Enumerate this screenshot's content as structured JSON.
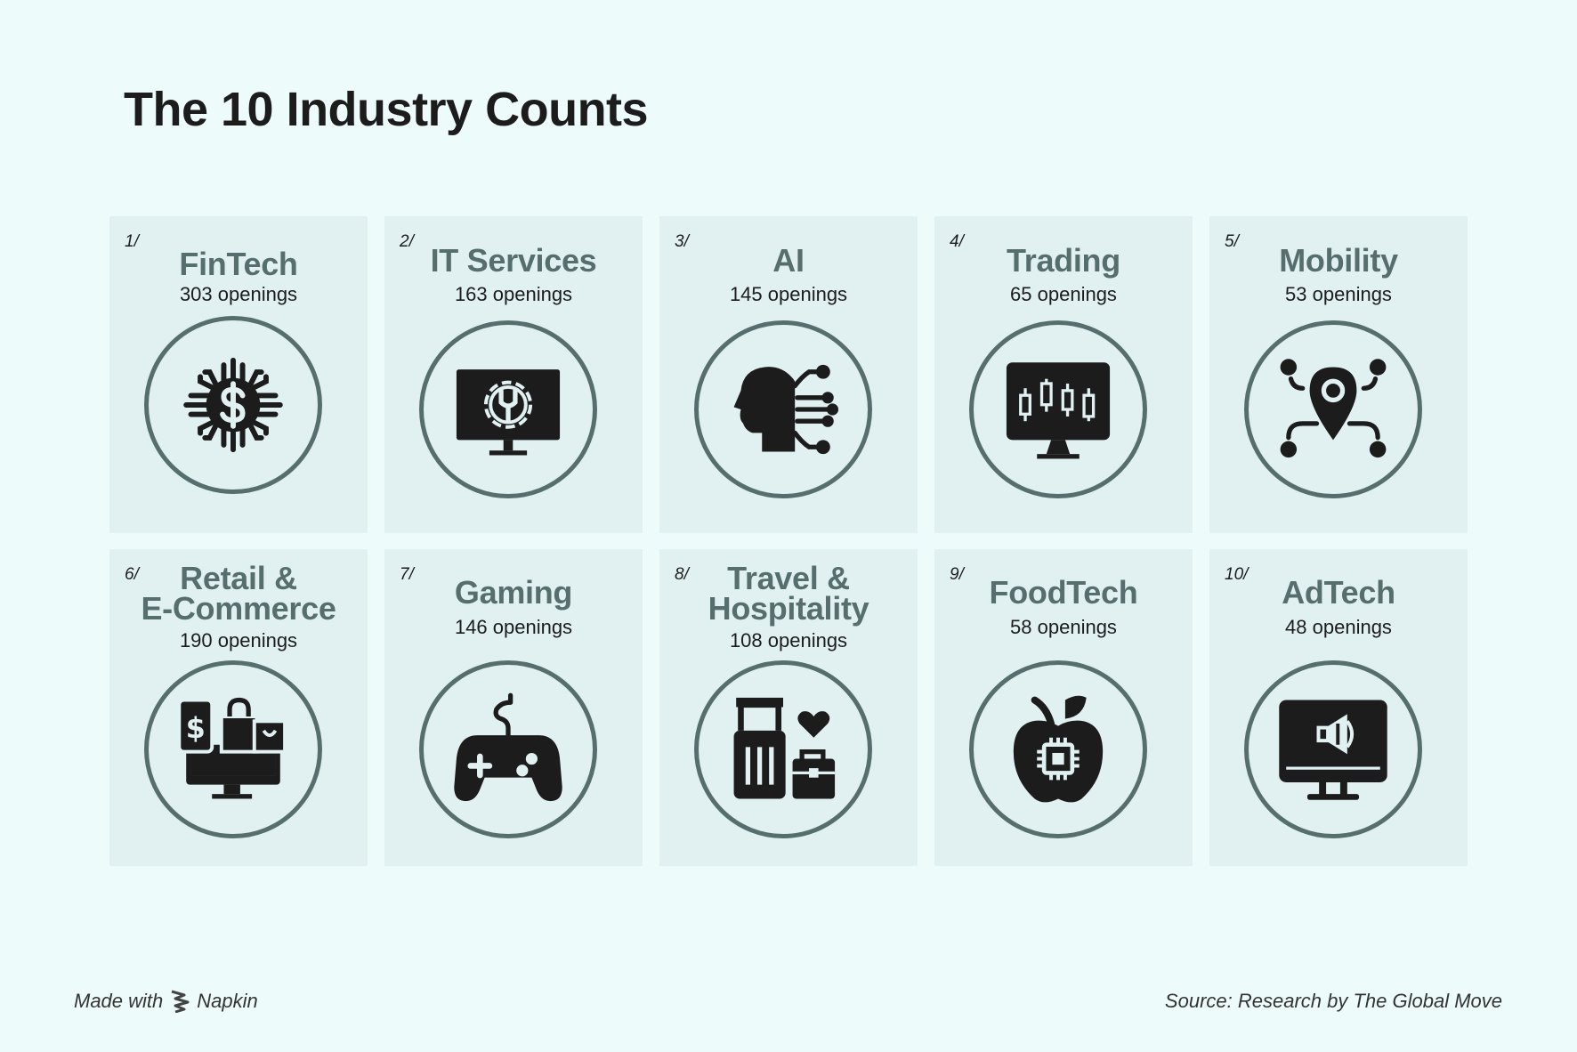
{
  "title": "The 10 Industry Counts",
  "cards": [
    {
      "rank": "1/",
      "name": "FinTech",
      "openings": "303 openings",
      "icon": "fintech-icon"
    },
    {
      "rank": "2/",
      "name": "IT Services",
      "openings": "163 openings",
      "icon": "it-services-icon"
    },
    {
      "rank": "3/",
      "name": "AI",
      "openings": "145 openings",
      "icon": "ai-head-icon"
    },
    {
      "rank": "4/",
      "name": "Trading",
      "openings": "65 openings",
      "icon": "trading-monitor-icon"
    },
    {
      "rank": "5/",
      "name": "Mobility",
      "openings": "53 openings",
      "icon": "mobility-pin-icon"
    },
    {
      "rank": "6/",
      "name": "Retail & E-Commerce",
      "name_line1": "Retail &",
      "name_line2": "E-Commerce",
      "openings": "190 openings",
      "icon": "ecommerce-icon"
    },
    {
      "rank": "7/",
      "name": "Gaming",
      "openings": "146 openings",
      "icon": "gamepad-icon"
    },
    {
      "rank": "8/",
      "name": "Travel & Hospitality",
      "name_line1": "Travel &",
      "name_line2": "Hospitality",
      "openings": "108 openings",
      "icon": "luggage-icon"
    },
    {
      "rank": "9/",
      "name": "FoodTech",
      "openings": "58 openings",
      "icon": "apple-chip-icon"
    },
    {
      "rank": "10/",
      "name": "AdTech",
      "openings": "48 openings",
      "icon": "ad-monitor-icon"
    }
  ],
  "chart_data": {
    "type": "table",
    "title": "The 10 Industry Counts",
    "categories": [
      "FinTech",
      "IT Services",
      "AI",
      "Trading",
      "Mobility",
      "Retail & E-Commerce",
      "Gaming",
      "Travel & Hospitality",
      "FoodTech",
      "AdTech"
    ],
    "values": [
      303,
      163,
      145,
      65,
      53,
      190,
      146,
      108,
      58,
      48
    ],
    "unit": "openings"
  },
  "footer": {
    "made_with": "Made with",
    "brand": "Napkin",
    "source": "Source: Research by The Global Move"
  },
  "colors": {
    "background": "#eefbfb",
    "card": "#e1f1f2",
    "accent": "#566f6e",
    "icon": "#1c1c1c"
  }
}
